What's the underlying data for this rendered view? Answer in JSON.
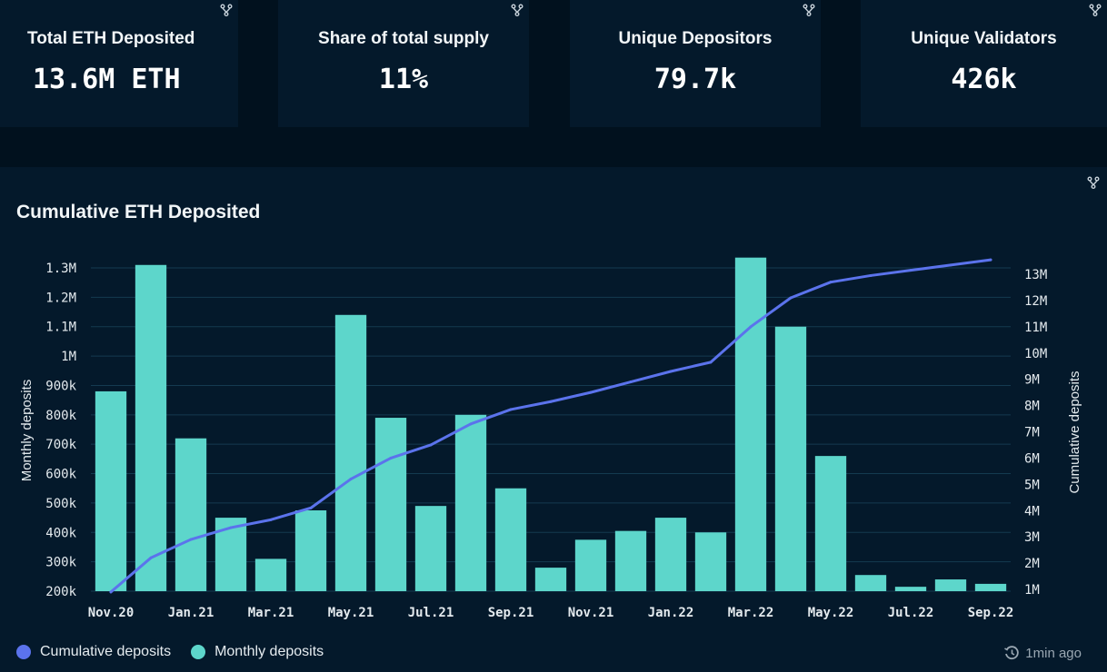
{
  "stats": [
    {
      "label": "Total ETH Deposited",
      "value": "13.6M ETH"
    },
    {
      "label": "Share of total supply",
      "value": "11%"
    },
    {
      "label": "Unique Depositors",
      "value": "79.7k"
    },
    {
      "label": "Unique Validators",
      "value": "426k"
    }
  ],
  "panel": {
    "title": "Cumulative ETH Deposited",
    "updated": "1min ago",
    "fork_icon": "fork-icon",
    "clock_icon": "history-clock-icon"
  },
  "colors": {
    "bar": "#5dd6cb",
    "line": "#5b73ec",
    "grid": "#143a50",
    "axis_text": "#e4eaee",
    "background": "#04192b"
  },
  "chart_data": {
    "type": "bar",
    "title": "Cumulative ETH Deposited",
    "categories": [
      "Nov.20",
      "Dec.20",
      "Jan.21",
      "Feb.21",
      "Mar.21",
      "Apr.21",
      "May.21",
      "Jun.21",
      "Jul.21",
      "Aug.21",
      "Sep.21",
      "Oct.21",
      "Nov.21",
      "Dec.21",
      "Jan.22",
      "Feb.22",
      "Mar.22",
      "Apr.22",
      "May.22",
      "Jun.22",
      "Jul.22",
      "Aug.22",
      "Sep.22"
    ],
    "x_tick_labels": [
      "Nov.20",
      "Jan.21",
      "Mar.21",
      "May.21",
      "Jul.21",
      "Sep.21",
      "Nov.21",
      "Jan.22",
      "Mar.22",
      "May.22",
      "Jul.22",
      "Sep.22"
    ],
    "y_left": {
      "label": "Monthly deposits",
      "ylim": [
        200000,
        1300000
      ],
      "ticks": [
        200000,
        300000,
        400000,
        500000,
        600000,
        700000,
        800000,
        900000,
        1000000,
        1100000,
        1200000,
        1300000
      ],
      "tick_labels": [
        "200k",
        "300k",
        "400k",
        "500k",
        "600k",
        "700k",
        "800k",
        "900k",
        "1M",
        "1.1M",
        "1.2M",
        "1.3M"
      ]
    },
    "y_right": {
      "label": "Cumulative deposits",
      "ylim": [
        1000000,
        13000000
      ],
      "ticks": [
        1000000,
        2000000,
        3000000,
        4000000,
        5000000,
        6000000,
        7000000,
        8000000,
        9000000,
        10000000,
        11000000,
        12000000,
        13000000
      ],
      "tick_labels": [
        "1M",
        "2M",
        "3M",
        "4M",
        "5M",
        "6M",
        "7M",
        "8M",
        "9M",
        "10M",
        "11M",
        "12M",
        "13M"
      ]
    },
    "series": [
      {
        "name": "Monthly deposits",
        "type": "bar",
        "axis": "left",
        "values": [
          880000,
          1310000,
          720000,
          450000,
          310000,
          475000,
          1140000,
          790000,
          490000,
          800000,
          550000,
          280000,
          375000,
          405000,
          450000,
          400000,
          1335000,
          1100000,
          660000,
          255000,
          215000,
          240000,
          225000
        ]
      },
      {
        "name": "Cumulative deposits",
        "type": "line",
        "axis": "right",
        "values": [
          900000,
          2200000,
          2900000,
          3350000,
          3650000,
          4100000,
          5200000,
          6000000,
          6500000,
          7300000,
          7850000,
          8150000,
          8500000,
          8900000,
          9300000,
          9650000,
          11000000,
          12100000,
          12700000,
          12950000,
          13150000,
          13350000,
          13550000
        ]
      }
    ],
    "grid": true,
    "legend": "bottom-left"
  }
}
